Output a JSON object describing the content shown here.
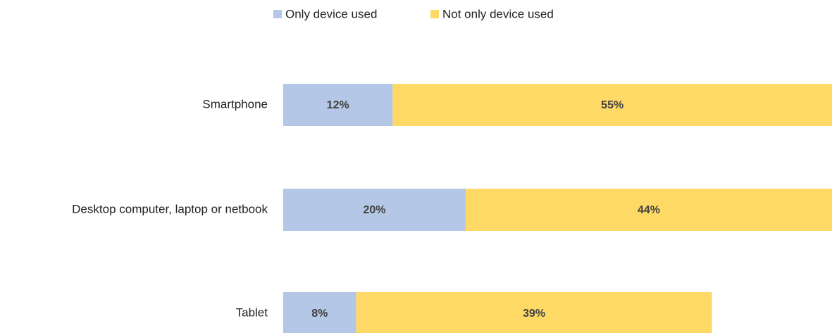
{
  "chart_data": {
    "type": "stacked-bar-horizontal",
    "categories": [
      "Smartphone",
      "Desktop computer, laptop or netbook",
      "Tablet"
    ],
    "series": [
      {
        "name": "Only device used",
        "color": "#b4c7e7",
        "values": [
          12,
          20,
          8
        ],
        "value_labels": [
          "12%",
          "20%",
          "8%"
        ]
      },
      {
        "name": "Not only device used",
        "color": "#ffd966",
        "values": [
          55,
          44,
          39
        ],
        "value_labels": [
          "55%",
          "44%",
          "39%"
        ]
      }
    ],
    "legend": "top"
  }
}
